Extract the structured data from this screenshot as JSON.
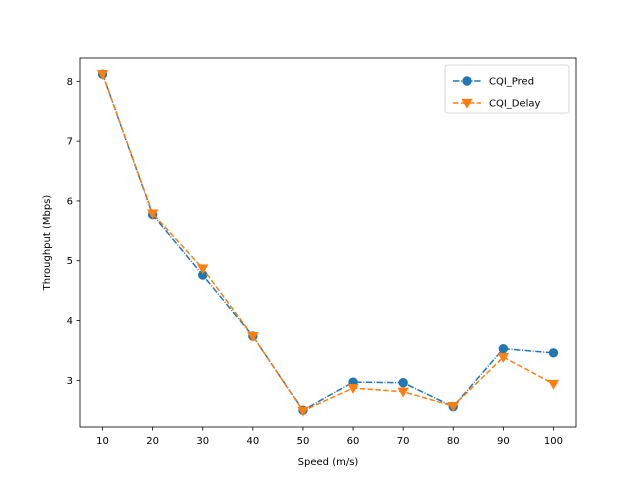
{
  "chart_data": {
    "type": "line",
    "title": "",
    "xlabel": "Speed (m/s)",
    "ylabel": "Throughput (Mbps)",
    "x": [
      10,
      20,
      30,
      40,
      50,
      60,
      70,
      80,
      90,
      100
    ],
    "xticks": [
      "10",
      "20",
      "30",
      "40",
      "50",
      "60",
      "70",
      "80",
      "90",
      "100"
    ],
    "yticks": [
      "3",
      "4",
      "5",
      "6",
      "7",
      "8"
    ],
    "xlim": [
      5.5,
      104.5
    ],
    "ylim": [
      2.22,
      8.39
    ],
    "grid": false,
    "legend_position": "top-right",
    "series": [
      {
        "name": "CQI_Pred",
        "color": "#1f77b4",
        "marker": "circle",
        "linestyle": "dash-dot",
        "values": [
          8.12,
          5.77,
          4.76,
          3.74,
          2.5,
          2.97,
          2.96,
          2.56,
          3.53,
          3.46
        ]
      },
      {
        "name": "CQI_Delay",
        "color": "#ff7f0e",
        "marker": "triangle-down",
        "linestyle": "dashed",
        "values": [
          8.12,
          5.79,
          4.87,
          3.74,
          2.49,
          2.87,
          2.81,
          2.57,
          3.39,
          2.94
        ]
      }
    ]
  }
}
